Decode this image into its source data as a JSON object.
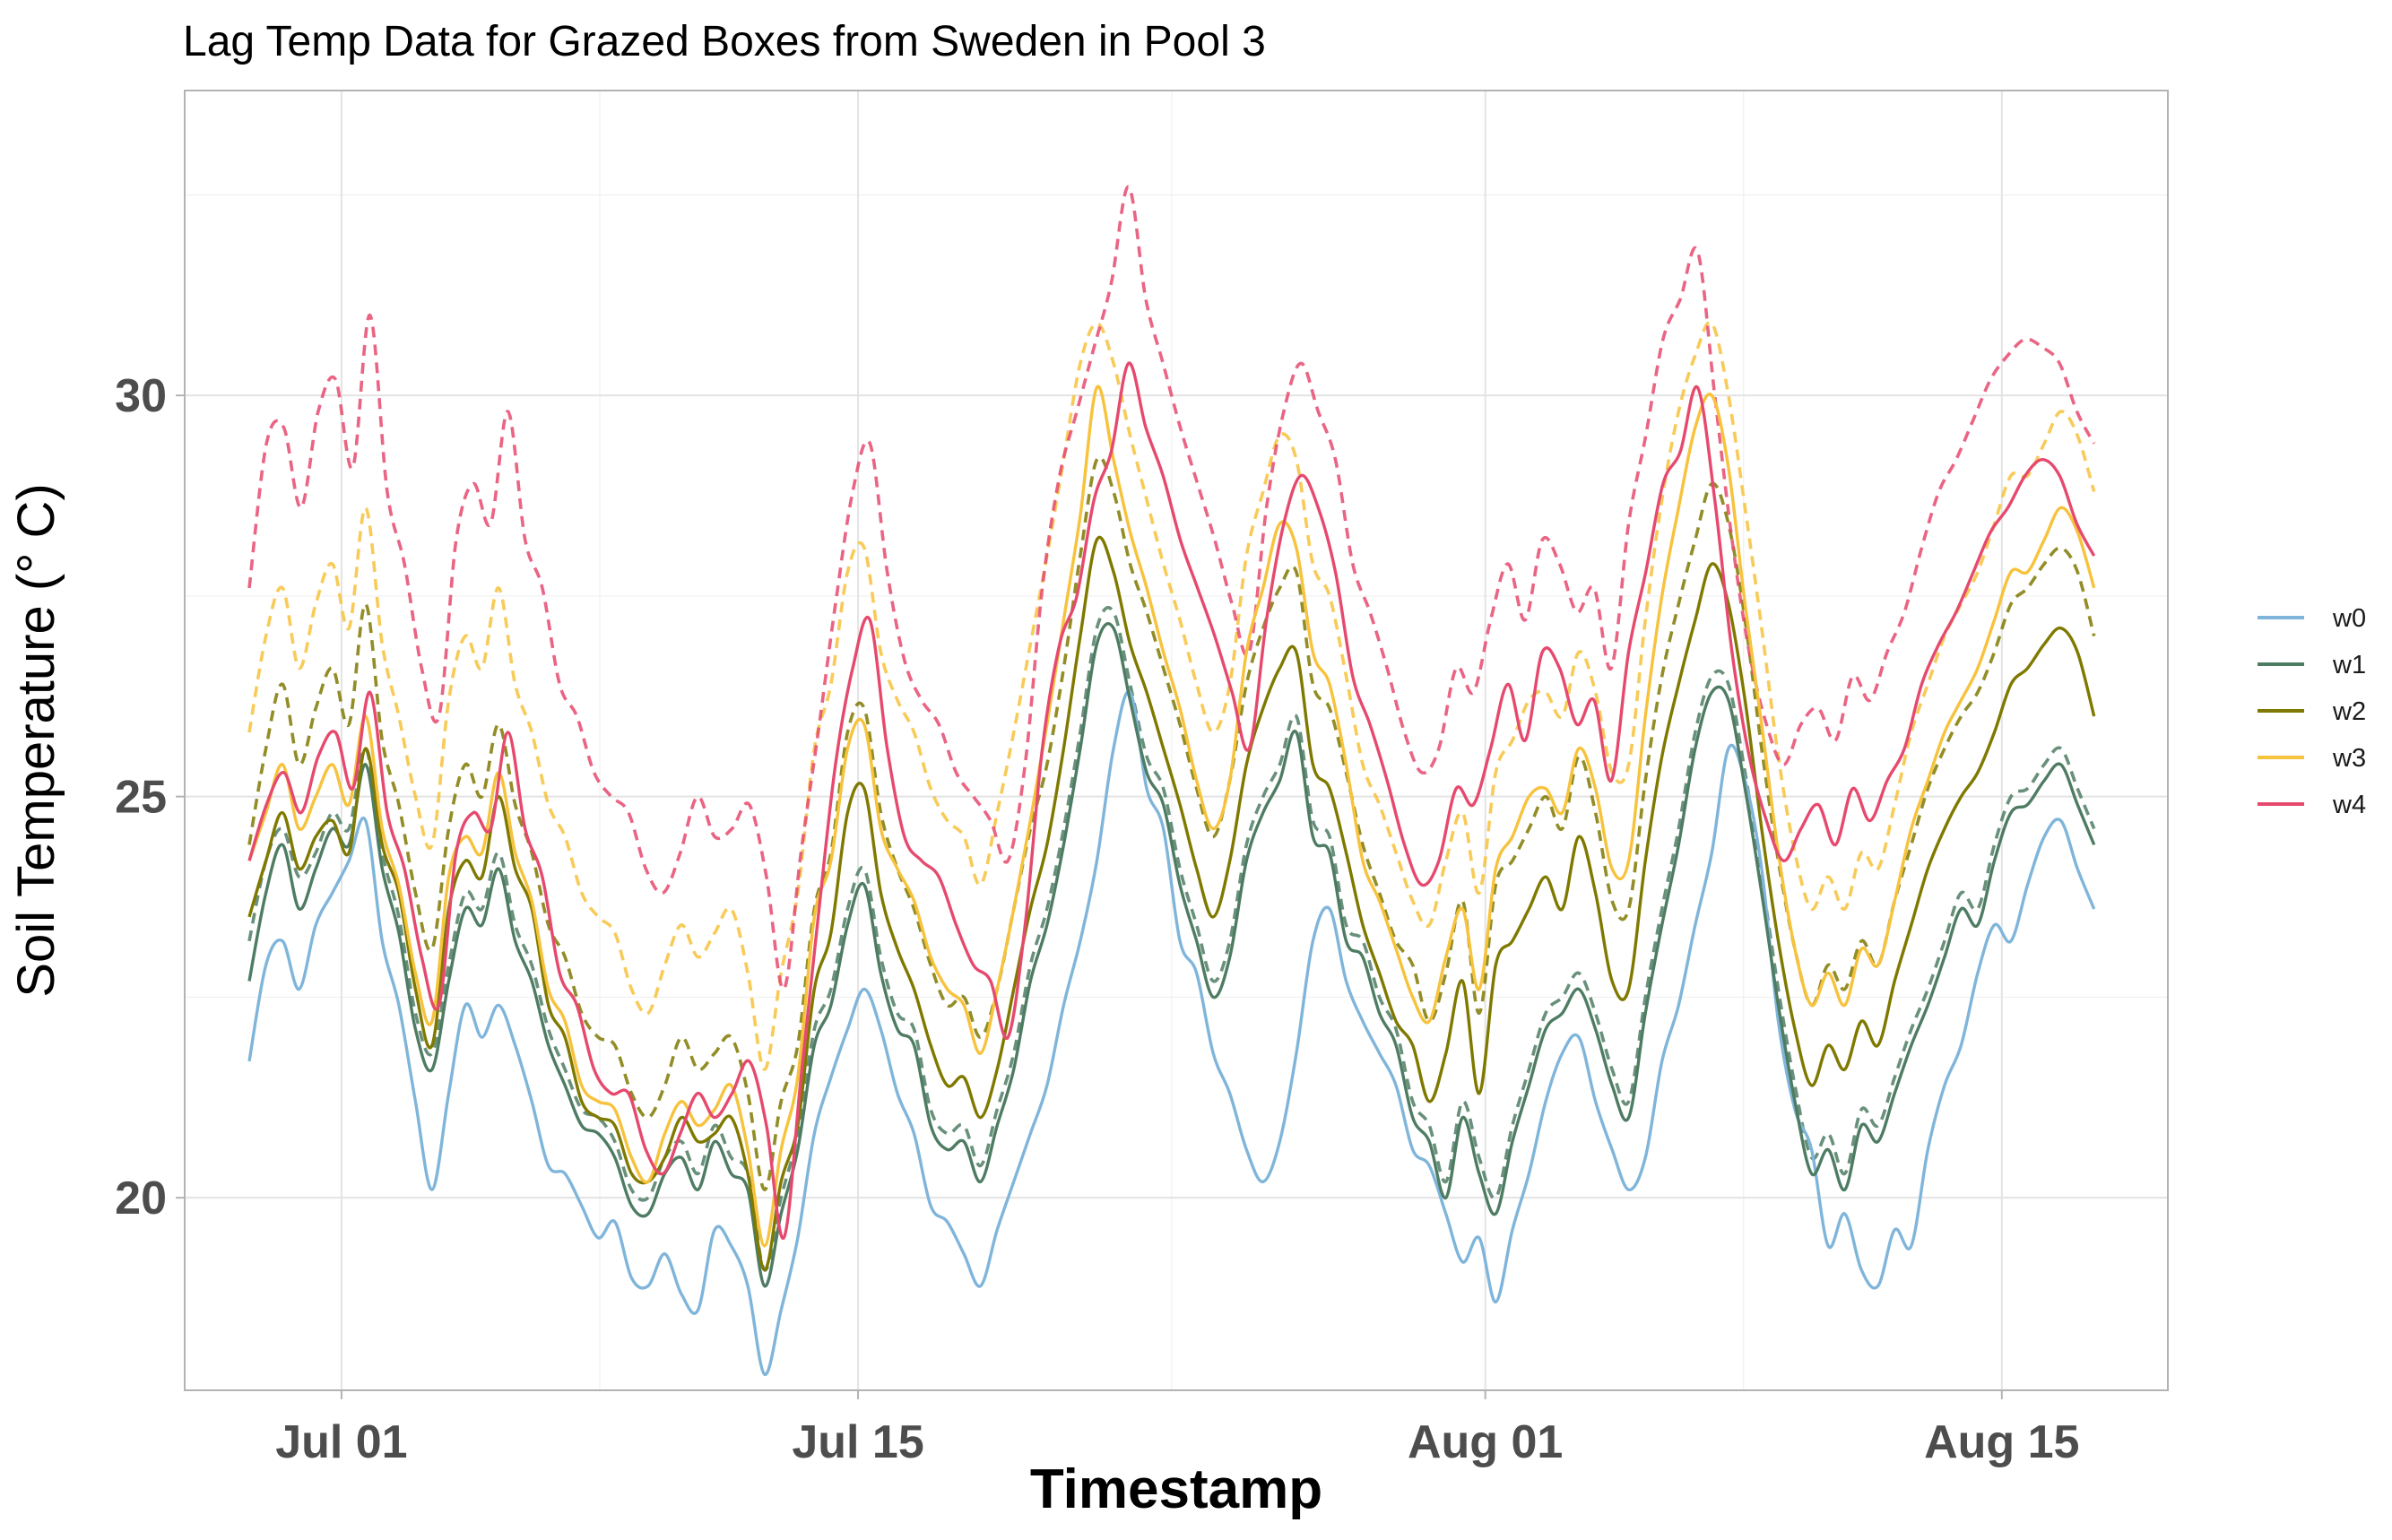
{
  "chart_data": {
    "type": "line",
    "title": "Lag Temp Data for Grazed Boxes from Sweden in Pool 3",
    "xlabel": "Timestamp",
    "ylabel": "Soil Temperature (° C)",
    "x_type": "date",
    "xlim": [
      "2024-06-26T18:00",
      "2024-08-19T12:00"
    ],
    "ylim": [
      17.6,
      33.8
    ],
    "x_ticks": [
      {
        "date": "2024-07-01T00:00",
        "label": "Jul 01"
      },
      {
        "date": "2024-07-15T00:00",
        "label": "Jul 15"
      },
      {
        "date": "2024-08-01T00:00",
        "label": "Aug 01"
      },
      {
        "date": "2024-08-15T00:00",
        "label": "Aug 15"
      }
    ],
    "x_minor_ticks": [
      "2024-07-08T00:00",
      "2024-07-23T12:00",
      "2024-08-08T00:00"
    ],
    "y_ticks": [
      20,
      25,
      30
    ],
    "y_minor_ticks": [
      17.5,
      22.5,
      27.5,
      32.5
    ],
    "grid": true,
    "legend_position": "right",
    "series_start": "2024-06-28T12:00",
    "series_end": "2024-08-17T12:00",
    "series": [
      {
        "name": "w0",
        "style": "solid",
        "color": "#7fb5da",
        "values": [
          21.7,
          22.9,
          23.2,
          22.6,
          23.4,
          23.8,
          24.2,
          24.7,
          23.2,
          22.4,
          21.2,
          20.1,
          21.3,
          22.4,
          22.0,
          22.4,
          21.9,
          21.2,
          20.4,
          20.3,
          19.9,
          19.5,
          19.7,
          19.0,
          18.9,
          19.3,
          18.8,
          18.6,
          19.6,
          19.4,
          18.9,
          17.8,
          18.6,
          19.5,
          20.8,
          21.5,
          22.1,
          22.6,
          22.1,
          21.3,
          20.8,
          19.9,
          19.7,
          19.3,
          18.9,
          19.6,
          20.2,
          20.8,
          21.4,
          22.4,
          23.2,
          24.2,
          25.6,
          26.3,
          25.1,
          24.6,
          23.2,
          22.8,
          21.8,
          21.3,
          20.6,
          20.2,
          20.7,
          21.8,
          23.2,
          23.6,
          22.7,
          22.2,
          21.8,
          21.4,
          20.6,
          20.4,
          19.8,
          19.2,
          19.5,
          18.7,
          19.6,
          20.3,
          21.2,
          21.8,
          22.0,
          21.2,
          20.6,
          20.1,
          20.5,
          21.7,
          22.4,
          23.4,
          24.3,
          25.6,
          25.2,
          24.1,
          22.2,
          21.1,
          20.6,
          19.4,
          19.8,
          19.1,
          18.9,
          19.6,
          19.4,
          20.6,
          21.4,
          21.9,
          22.8,
          23.4,
          23.2,
          23.9,
          24.5,
          24.7,
          24.1,
          23.6
        ]
      },
      {
        "name": "w1",
        "style": "solid",
        "color": "#4e7c63",
        "values": [
          22.7,
          23.8,
          24.4,
          23.6,
          24.1,
          24.6,
          24.4,
          25.4,
          24.1,
          23.3,
          22.1,
          21.6,
          22.7,
          23.6,
          23.4,
          24.1,
          23.2,
          22.7,
          21.9,
          21.4,
          20.9,
          20.8,
          20.5,
          19.9,
          19.8,
          20.3,
          20.5,
          20.1,
          20.7,
          20.3,
          20.1,
          18.9,
          19.8,
          20.6,
          21.9,
          22.4,
          23.4,
          23.9,
          22.8,
          22.1,
          21.9,
          20.9,
          20.6,
          20.7,
          20.2,
          20.9,
          21.6,
          22.7,
          23.4,
          24.4,
          25.6,
          26.9,
          27.1,
          26.2,
          25.3,
          24.9,
          23.9,
          23.2,
          22.5,
          23.0,
          24.2,
          24.8,
          25.2,
          25.8,
          24.5,
          24.3,
          23.2,
          23.0,
          22.3,
          21.9,
          21.0,
          20.7,
          20.0,
          21.0,
          20.3,
          19.8,
          20.7,
          21.4,
          22.1,
          22.3,
          22.6,
          22.1,
          21.4,
          21.0,
          22.3,
          23.4,
          24.4,
          25.6,
          26.3,
          26.2,
          25.1,
          23.8,
          22.4,
          21.2,
          20.3,
          20.6,
          20.1,
          20.9,
          20.7,
          21.3,
          21.9,
          22.4,
          23.0,
          23.6,
          23.4,
          24.2,
          24.8,
          24.9,
          25.2,
          25.4,
          24.9,
          24.4
        ]
      },
      {
        "name": "w2",
        "style": "solid",
        "color": "#7f7900",
        "values": [
          23.5,
          24.2,
          24.8,
          24.1,
          24.5,
          24.7,
          24.3,
          25.6,
          24.4,
          23.8,
          22.6,
          21.9,
          23.6,
          24.2,
          24.0,
          25.0,
          24.1,
          23.6,
          22.4,
          22.0,
          21.2,
          21.0,
          20.9,
          20.3,
          20.2,
          20.5,
          21.0,
          20.7,
          20.8,
          21.0,
          20.3,
          19.1,
          20.2,
          20.9,
          22.6,
          23.3,
          24.8,
          25.1,
          23.8,
          23.1,
          22.6,
          21.9,
          21.4,
          21.5,
          21.0,
          21.6,
          22.6,
          23.6,
          24.4,
          25.6,
          27.0,
          28.2,
          27.8,
          26.9,
          26.3,
          25.6,
          24.9,
          24.1,
          23.5,
          24.2,
          25.4,
          26.1,
          26.6,
          26.8,
          25.4,
          25.1,
          24.3,
          23.4,
          22.8,
          22.2,
          21.9,
          21.2,
          21.8,
          22.7,
          21.3,
          22.9,
          23.2,
          23.6,
          24.0,
          23.6,
          24.5,
          23.8,
          22.7,
          22.6,
          24.2,
          25.5,
          26.4,
          27.2,
          27.9,
          27.4,
          26.2,
          24.6,
          23.2,
          22.1,
          21.4,
          21.9,
          21.6,
          22.2,
          21.9,
          22.7,
          23.4,
          24.1,
          24.6,
          25.0,
          25.3,
          25.8,
          26.4,
          26.6,
          26.9,
          27.1,
          26.8,
          26.0
        ]
      },
      {
        "name": "w3",
        "style": "solid",
        "color": "#f7c23c",
        "values": [
          24.2,
          24.8,
          25.4,
          24.6,
          25.0,
          25.4,
          24.9,
          26.0,
          24.6,
          23.9,
          22.8,
          22.2,
          24.0,
          24.5,
          24.3,
          25.3,
          24.3,
          23.7,
          22.6,
          22.2,
          21.4,
          21.2,
          21.1,
          20.5,
          20.2,
          20.8,
          21.2,
          20.9,
          21.1,
          21.4,
          20.6,
          19.4,
          20.6,
          21.5,
          23.5,
          24.2,
          25.6,
          25.9,
          24.6,
          24.1,
          23.7,
          23.0,
          22.6,
          22.4,
          21.8,
          22.6,
          23.6,
          24.7,
          25.9,
          27.2,
          28.5,
          30.1,
          29.2,
          28.3,
          27.6,
          26.8,
          26.1,
          25.2,
          24.6,
          25.2,
          26.8,
          27.6,
          28.4,
          28.1,
          26.8,
          26.4,
          25.4,
          24.2,
          23.7,
          23.1,
          22.5,
          22.2,
          23.0,
          23.6,
          22.6,
          24.1,
          24.5,
          25.0,
          25.1,
          24.8,
          25.6,
          25.1,
          24.1,
          24.2,
          26.0,
          27.5,
          28.6,
          29.6,
          30.0,
          29.1,
          27.4,
          25.9,
          24.3,
          23.1,
          22.4,
          22.8,
          22.4,
          23.1,
          22.9,
          23.7,
          24.6,
          25.2,
          25.8,
          26.2,
          26.6,
          27.2,
          27.8,
          27.8,
          28.2,
          28.6,
          28.3,
          27.6
        ]
      },
      {
        "name": "w4",
        "style": "solid",
        "color": "#e6496e",
        "values": [
          24.2,
          24.9,
          25.3,
          24.8,
          25.5,
          25.8,
          25.1,
          26.3,
          24.8,
          24.1,
          23.0,
          22.4,
          24.3,
          24.8,
          24.6,
          25.8,
          24.6,
          24.0,
          22.8,
          22.4,
          21.6,
          21.3,
          21.3,
          20.6,
          20.3,
          20.8,
          21.3,
          21.0,
          21.3,
          21.7,
          20.9,
          19.5,
          21.5,
          23.5,
          25.4,
          26.6,
          27.2,
          25.6,
          24.5,
          24.2,
          24.0,
          23.4,
          22.9,
          22.7,
          22.0,
          23.4,
          25.6,
          26.9,
          27.5,
          28.7,
          29.3,
          30.4,
          29.6,
          29.0,
          28.2,
          27.6,
          27.0,
          26.3,
          25.6,
          27.2,
          28.4,
          29.0,
          28.6,
          27.8,
          26.5,
          25.9,
          25.2,
          24.4,
          23.9,
          24.2,
          25.1,
          24.9,
          25.6,
          26.4,
          25.7,
          26.8,
          26.6,
          25.9,
          26.2,
          25.2,
          26.8,
          27.8,
          28.9,
          29.3,
          30.1,
          28.7,
          26.8,
          25.5,
          24.7,
          24.2,
          24.6,
          24.9,
          24.4,
          25.1,
          24.7,
          25.2,
          25.6,
          26.4,
          26.9,
          27.3,
          27.8,
          28.3,
          28.6,
          29.0,
          29.2,
          29.0,
          28.4,
          28.0
        ]
      },
      {
        "name": "",
        "style": "dashed",
        "color": "#4e7c63",
        "values": [
          23.2,
          24.2,
          24.6,
          24.0,
          24.3,
          24.8,
          24.6,
          25.6,
          24.3,
          23.5,
          22.3,
          21.8,
          22.9,
          23.8,
          23.6,
          24.3,
          23.4,
          22.9,
          22.1,
          21.6,
          21.1,
          21.0,
          20.7,
          20.1,
          20.0,
          20.5,
          20.7,
          20.3,
          20.9,
          20.5,
          20.3,
          19.1,
          20.0,
          20.8,
          22.1,
          22.6,
          23.6,
          24.1,
          23.0,
          22.3,
          22.1,
          21.1,
          20.8,
          20.9,
          20.4,
          21.1,
          21.8,
          22.9,
          23.6,
          24.6,
          25.8,
          27.1,
          27.3,
          26.4,
          25.5,
          25.1,
          24.1,
          23.4,
          22.7,
          23.2,
          24.4,
          25.0,
          25.4,
          26.0,
          24.7,
          24.5,
          23.4,
          23.2,
          22.5,
          22.1,
          21.2,
          20.9,
          20.2,
          21.2,
          20.5,
          20.0,
          20.9,
          21.6,
          22.3,
          22.5,
          22.8,
          22.3,
          21.6,
          21.2,
          22.5,
          23.6,
          24.6,
          25.8,
          26.5,
          26.4,
          25.3,
          24.0,
          22.6,
          21.4,
          20.5,
          20.8,
          20.3,
          21.1,
          20.9,
          21.5,
          22.1,
          22.6,
          23.2,
          23.8,
          23.6,
          24.4,
          25.0,
          25.1,
          25.4,
          25.6,
          25.1,
          24.6
        ]
      },
      {
        "name": "",
        "style": "dashed",
        "color": "#7f7900",
        "values": [
          24.4,
          25.6,
          26.4,
          25.4,
          26.1,
          26.6,
          25.9,
          27.4,
          25.7,
          24.9,
          23.8,
          23.1,
          24.6,
          25.4,
          25.0,
          25.9,
          24.9,
          24.3,
          23.4,
          23.0,
          22.3,
          22.0,
          21.9,
          21.3,
          21.0,
          21.4,
          22.0,
          21.6,
          21.8,
          22.0,
          21.3,
          20.1,
          21.2,
          21.9,
          23.6,
          24.3,
          25.8,
          26.1,
          24.8,
          24.1,
          23.6,
          22.9,
          22.4,
          22.5,
          22.0,
          22.6,
          23.6,
          24.6,
          25.4,
          26.6,
          28.0,
          29.2,
          28.8,
          27.9,
          27.3,
          26.6,
          25.9,
          25.1,
          24.5,
          25.2,
          26.4,
          27.1,
          27.6,
          27.8,
          26.4,
          26.1,
          25.3,
          24.4,
          23.8,
          23.2,
          22.9,
          22.2,
          22.8,
          23.7,
          22.3,
          23.9,
          24.2,
          24.6,
          25.0,
          24.6,
          25.5,
          24.8,
          23.7,
          23.6,
          25.2,
          26.5,
          27.4,
          28.2,
          28.9,
          28.4,
          27.2,
          25.6,
          24.2,
          23.1,
          22.4,
          22.9,
          22.6,
          23.2,
          22.9,
          23.7,
          24.4,
          25.1,
          25.6,
          26.0,
          26.3,
          26.8,
          27.4,
          27.6,
          27.9,
          28.1,
          27.8,
          27.0
        ]
      },
      {
        "name": "",
        "style": "dashed",
        "color": "#f7c23c",
        "values": [
          25.8,
          27.0,
          27.6,
          26.6,
          27.4,
          27.9,
          27.1,
          28.6,
          26.9,
          26.0,
          25.0,
          24.4,
          26.2,
          27.0,
          26.6,
          27.6,
          26.4,
          25.8,
          24.9,
          24.5,
          23.8,
          23.5,
          23.3,
          22.6,
          22.3,
          22.9,
          23.4,
          23.0,
          23.3,
          23.6,
          22.8,
          21.6,
          22.8,
          23.8,
          25.6,
          26.4,
          27.8,
          28.1,
          26.8,
          26.2,
          25.8,
          25.1,
          24.7,
          24.5,
          23.9,
          24.8,
          25.8,
          26.9,
          28.0,
          29.2,
          30.4,
          30.9,
          30.4,
          29.5,
          28.7,
          27.9,
          27.2,
          26.4,
          25.8,
          26.4,
          28.0,
          28.8,
          29.5,
          29.2,
          27.9,
          27.5,
          26.5,
          25.4,
          24.9,
          24.3,
          23.7,
          23.4,
          24.2,
          24.8,
          23.8,
          25.3,
          25.7,
          26.2,
          26.3,
          26.0,
          26.8,
          26.3,
          25.3,
          25.4,
          27.2,
          28.7,
          29.8,
          30.5,
          30.9,
          30.0,
          28.6,
          27.1,
          25.5,
          24.3,
          23.6,
          24.0,
          23.6,
          24.3,
          24.1,
          24.9,
          25.8,
          26.4,
          27.0,
          27.4,
          27.8,
          28.4,
          29.0,
          29.0,
          29.4,
          29.8,
          29.5,
          28.8
        ]
      },
      {
        "name": "",
        "style": "dashed",
        "color": "#e6496e",
        "values": [
          27.6,
          29.4,
          29.6,
          28.6,
          29.8,
          30.2,
          29.1,
          31.0,
          28.8,
          27.9,
          26.6,
          26.0,
          28.2,
          28.9,
          28.4,
          29.8,
          28.2,
          27.6,
          26.4,
          26.0,
          25.3,
          25.0,
          24.8,
          24.1,
          23.8,
          24.3,
          25.0,
          24.5,
          24.6,
          24.9,
          24.0,
          22.6,
          24.3,
          25.8,
          27.4,
          28.8,
          29.4,
          27.8,
          26.7,
          26.2,
          25.9,
          25.3,
          25.0,
          24.7,
          24.2,
          25.4,
          27.6,
          29.0,
          29.8,
          30.6,
          31.4,
          32.6,
          31.2,
          30.4,
          29.6,
          28.9,
          28.2,
          27.4,
          26.8,
          28.6,
          29.8,
          30.4,
          29.8,
          29.2,
          27.9,
          27.3,
          26.6,
          25.8,
          25.3,
          25.6,
          26.6,
          26.3,
          27.2,
          27.9,
          27.2,
          28.2,
          27.9,
          27.3,
          27.6,
          26.6,
          28.4,
          29.5,
          30.7,
          31.2,
          31.8,
          30.0,
          28.2,
          26.8,
          25.9,
          25.4,
          25.9,
          26.1,
          25.7,
          26.5,
          26.2,
          26.8,
          27.3,
          28.1,
          28.8,
          29.2,
          29.7,
          30.2,
          30.5,
          30.7,
          30.6,
          30.4,
          29.8,
          29.4
        ]
      }
    ]
  }
}
